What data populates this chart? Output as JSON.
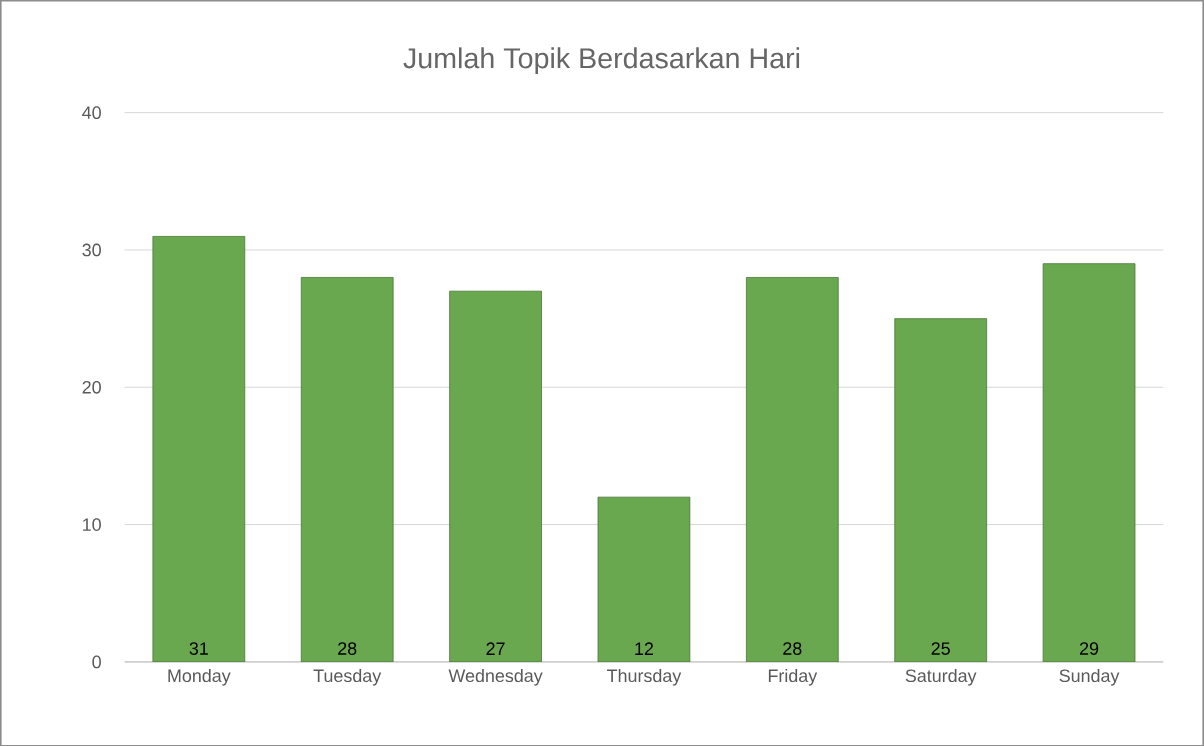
{
  "chart_data": {
    "type": "bar",
    "title": "Jumlah Topik Berdasarkan Hari",
    "categories": [
      "Monday",
      "Tuesday",
      "Wednesday",
      "Thursday",
      "Friday",
      "Saturday",
      "Sunday"
    ],
    "values": [
      31,
      28,
      27,
      12,
      28,
      25,
      29
    ],
    "color": "#6aa84f",
    "ylim": [
      0,
      40
    ],
    "yticks": [
      0,
      10,
      20,
      30,
      40
    ],
    "grid": "y",
    "data_labels": true
  }
}
